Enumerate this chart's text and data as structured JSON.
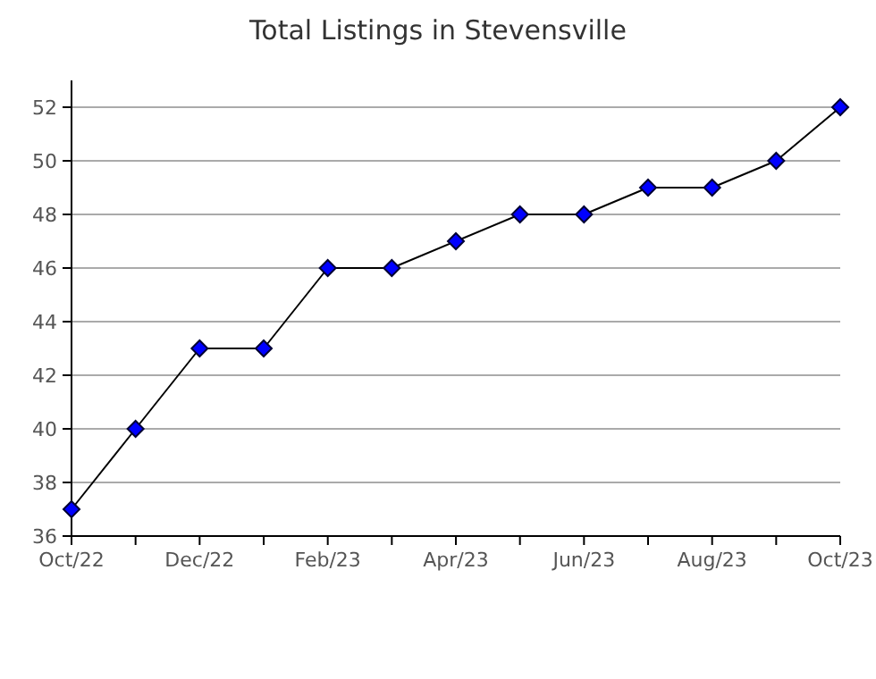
{
  "chart_data": {
    "type": "line",
    "title": "Total Listings in Stevensville",
    "categories": [
      "Oct/22",
      null,
      "Dec/22",
      null,
      "Feb/23",
      null,
      "Apr/23",
      null,
      "Jun/23",
      null,
      "Aug/23",
      null,
      "Oct/23"
    ],
    "series": [
      {
        "color": "#0000ff",
        "values": [
          37,
          40,
          43,
          43,
          46,
          46,
          47,
          48,
          48,
          49,
          49,
          50,
          52
        ]
      }
    ],
    "ylim": [
      36,
      53
    ],
    "yticks": [
      36,
      38,
      40,
      42,
      44,
      46,
      48,
      50,
      52
    ],
    "grid": "y",
    "marker": "diamond",
    "line_style": "solid"
  }
}
